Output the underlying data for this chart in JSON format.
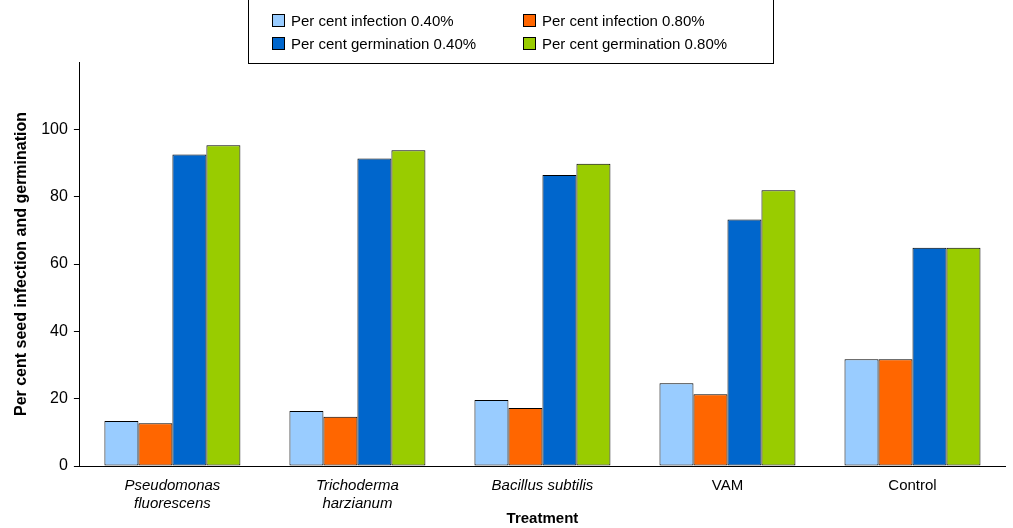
{
  "chart_data": {
    "type": "bar",
    "xlabel": "Treatment",
    "ylabel": "Per cent seed infection and germination",
    "categories": [
      "Pseudomonas fluorescens",
      "Trichoderma harzianum",
      "Bacillus subtilis",
      "VAM",
      "Control"
    ],
    "series": [
      {
        "name": "Per cent infection 0.40%",
        "color": "#99ccff",
        "values": [
          13.4,
          16.3,
          19.6,
          24.6,
          31.7
        ]
      },
      {
        "name": "Per cent infection 0.80%",
        "color": "#ff6600",
        "values": [
          12.7,
          14.6,
          17.2,
          21.3,
          31.7
        ]
      },
      {
        "name": "Per cent germination 0.40%",
        "color": "#0066cc",
        "values": [
          92.5,
          91.3,
          86.4,
          73.2,
          64.8
        ]
      },
      {
        "name": "Per cent germination 0.80%",
        "color": "#99cc00",
        "values": [
          95.3,
          93.8,
          89.8,
          81.9,
          64.8
        ]
      }
    ],
    "ylim": [
      0,
      120
    ],
    "yticks": [
      0,
      20,
      40,
      60,
      80,
      100
    ],
    "grid": false,
    "legend": "top"
  }
}
